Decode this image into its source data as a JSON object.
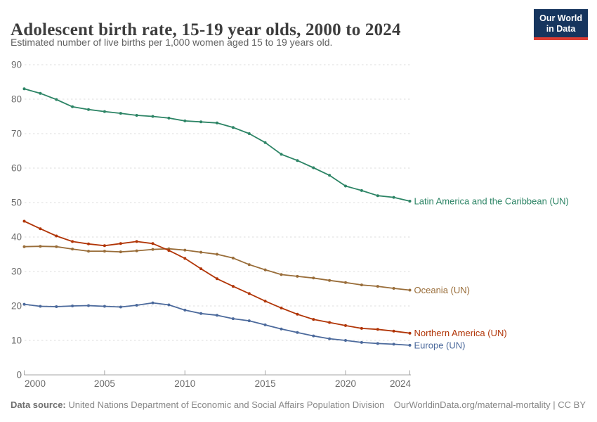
{
  "header": {
    "title": "Adolescent birth rate, 15-19 year olds, 2000 to 2024",
    "subtitle": "Estimated number of live births per 1,000 women aged 15 to 19 years old."
  },
  "logo": {
    "line1": "Our World",
    "line2": "in Data",
    "bg_color": "#16355e",
    "accent_color": "#dc3d33"
  },
  "chart_data": {
    "type": "line",
    "title": "Adolescent birth rate, 15-19 year olds, 2000 to 2024",
    "subtitle": "Estimated number of live births per 1,000 women aged 15 to 19 years old.",
    "xlabel": "",
    "ylabel": "",
    "ylim": [
      0,
      90
    ],
    "yticks": [
      0,
      10,
      20,
      30,
      40,
      50,
      60,
      70,
      80,
      90
    ],
    "xticks": [
      2000,
      2005,
      2010,
      2015,
      2020,
      2024
    ],
    "grid": "horizontal-dashed",
    "legend_position": "end-of-line-labels",
    "x": [
      2000,
      2001,
      2002,
      2003,
      2004,
      2005,
      2006,
      2007,
      2008,
      2009,
      2010,
      2011,
      2012,
      2013,
      2014,
      2015,
      2016,
      2017,
      2018,
      2019,
      2020,
      2021,
      2022,
      2023,
      2024
    ],
    "series": [
      {
        "name": "Latin America and the Caribbean (UN)",
        "color": "#2C8465",
        "values": [
          83.0,
          81.7,
          79.9,
          77.8,
          77.0,
          76.4,
          75.9,
          75.3,
          75.0,
          74.5,
          73.7,
          73.4,
          73.1,
          71.8,
          70.0,
          67.4,
          64.0,
          62.2,
          60.1,
          57.9,
          54.8,
          53.5,
          52.0,
          51.5,
          50.4
        ]
      },
      {
        "name": "Oceania (UN)",
        "color": "#996D39",
        "values": [
          37.2,
          37.3,
          37.2,
          36.5,
          35.9,
          35.9,
          35.7,
          36.0,
          36.4,
          36.6,
          36.2,
          35.6,
          35.0,
          33.9,
          32.0,
          30.5,
          29.1,
          28.6,
          28.1,
          27.4,
          26.8,
          26.1,
          25.7,
          25.1,
          24.6
        ]
      },
      {
        "name": "Northern America (UN)",
        "color": "#B13507",
        "values": [
          44.6,
          42.4,
          40.3,
          38.7,
          38.0,
          37.5,
          38.1,
          38.7,
          38.1,
          36.1,
          33.8,
          30.8,
          27.9,
          25.7,
          23.6,
          21.4,
          19.4,
          17.6,
          16.1,
          15.2,
          14.3,
          13.5,
          13.2,
          12.7,
          12.1
        ]
      },
      {
        "name": "Europe (UN)",
        "color": "#4C6A9C",
        "values": [
          20.5,
          19.9,
          19.8,
          20.0,
          20.1,
          19.9,
          19.7,
          20.2,
          20.9,
          20.3,
          18.8,
          17.8,
          17.3,
          16.3,
          15.7,
          14.5,
          13.3,
          12.3,
          11.3,
          10.5,
          10.0,
          9.4,
          9.1,
          8.9,
          8.6
        ]
      }
    ]
  },
  "footer": {
    "source_label": "Data source:",
    "source_text": "United Nations Department of Economic and Social Affairs Population Division",
    "right_text": "OurWorldinData.org/maternal-mortality | CC BY"
  }
}
